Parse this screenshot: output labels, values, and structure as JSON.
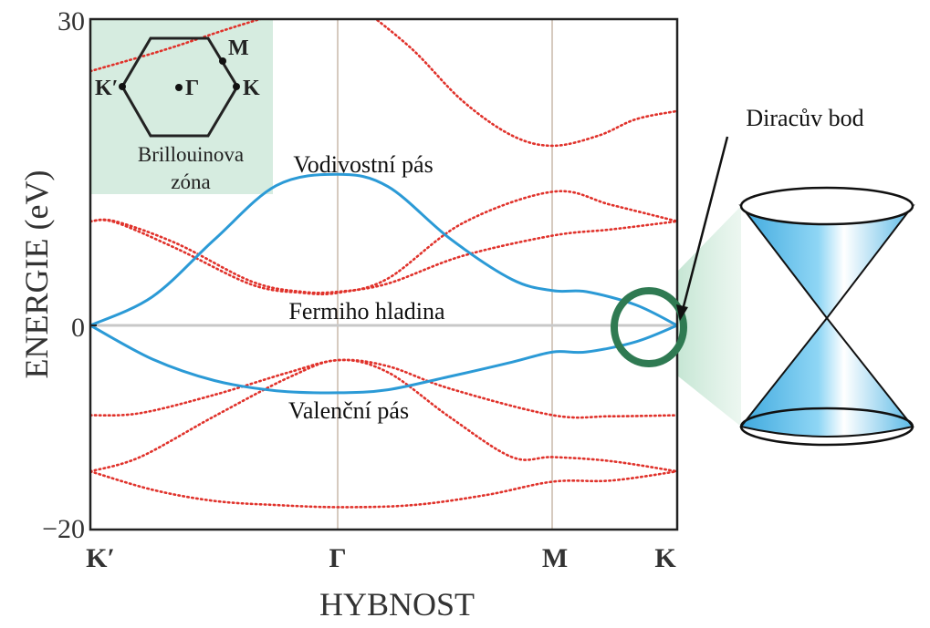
{
  "colors": {
    "conduction_valence": "#2b9ad6",
    "other_bands": "#e0322b",
    "fermi_line": "#c8c8c8",
    "zone_inset_bg": "#d6ece0",
    "dirac_ring": "#2f7a52",
    "grid": "#c8b8aa",
    "cone": "#7fcff0"
  },
  "chart_data": {
    "type": "line",
    "title": "",
    "xlabel": "HYBNOST",
    "ylabel": "ENERGIE (eV)",
    "ylim": [
      -20,
      30
    ],
    "yticks": [
      "30",
      "0",
      "−20"
    ],
    "x_points": [
      {
        "label": "K′",
        "pos": 0
      },
      {
        "label": "Γ",
        "pos": 1
      },
      {
        "label": "M",
        "pos": 1.866
      },
      {
        "label": "K",
        "pos": 2.366
      }
    ],
    "grid": "vertical lines at Γ and M",
    "series": [
      {
        "style": "solid",
        "color": "#2b9ad6",
        "x": [
          0,
          0.25,
          0.5,
          0.75,
          1.0,
          1.2,
          1.45,
          1.7,
          1.866,
          2.0,
          2.2,
          2.366
        ],
        "y": [
          0,
          2.8,
          8.4,
          13.7,
          14.8,
          13.6,
          8.5,
          4.5,
          3.4,
          3.3,
          2.0,
          0
        ]
      },
      {
        "style": "solid",
        "color": "#2b9ad6",
        "x": [
          0,
          0.25,
          0.5,
          0.75,
          1.0,
          1.2,
          1.45,
          1.7,
          1.866,
          2.0,
          2.2,
          2.366
        ],
        "y": [
          0,
          -3.3,
          -5.4,
          -6.4,
          -6.6,
          -6.3,
          -5.0,
          -3.6,
          -2.6,
          -2.6,
          -1.6,
          0
        ]
      },
      {
        "style": "dotted",
        "color": "#e0322b",
        "x": [
          0.0,
          0.1,
          0.35,
          0.65,
          0.85,
          1.0,
          1.2,
          1.5,
          1.866,
          2.1,
          2.366
        ],
        "y": [
          10.2,
          10.2,
          8.0,
          4.3,
          3.3,
          3.3,
          4.1,
          6.8,
          8.8,
          9.4,
          10.2
        ]
      },
      {
        "style": "dotted",
        "color": "#e0322b",
        "x": [
          0.0,
          0.1,
          0.35,
          0.65,
          0.85,
          1.0,
          1.2,
          1.5,
          1.866,
          2.1,
          2.366
        ],
        "y": [
          10.2,
          10.1,
          7.5,
          4.0,
          3.2,
          3.2,
          4.6,
          10.0,
          13.1,
          11.8,
          10.2
        ]
      },
      {
        "style": "dotted",
        "color": "#e0322b",
        "x": [
          0.0,
          0.2,
          0.5,
          0.8,
          1.0,
          1.2,
          1.45,
          1.866,
          2.1,
          2.366
        ],
        "y": [
          -8.8,
          -8.6,
          -6.8,
          -4.6,
          -3.4,
          -4.0,
          -6.2,
          -8.8,
          -8.9,
          -8.8
        ]
      },
      {
        "style": "dotted",
        "color": "#e0322b",
        "x": [
          0.0,
          0.2,
          0.5,
          0.8,
          1.0,
          1.2,
          1.45,
          1.7,
          1.866,
          2.1,
          2.366
        ],
        "y": [
          -14.3,
          -12.9,
          -8.9,
          -5.1,
          -3.4,
          -4.6,
          -9.0,
          -12.9,
          -12.9,
          -13.3,
          -14.3
        ]
      },
      {
        "style": "dotted",
        "color": "#e0322b",
        "x": [
          0.0,
          0.25,
          0.5,
          0.75,
          1.0,
          1.3,
          1.6,
          1.866,
          2.1,
          2.366
        ],
        "y": [
          -14.3,
          -16.1,
          -17.2,
          -17.6,
          -17.8,
          -17.6,
          -16.6,
          -15.3,
          -15.2,
          -14.3
        ]
      },
      {
        "style": "dotted",
        "color": "#e0322b",
        "x": [
          0.0,
          0.3,
          0.55,
          0.75,
          0.95
        ],
        "y": [
          24.9,
          27.0,
          29.0,
          30.5,
          32.0
        ]
      },
      {
        "style": "dotted",
        "color": "#e0322b",
        "x": [
          1.1,
          1.3,
          1.5,
          1.7,
          1.866,
          2.05,
          2.2,
          2.366
        ],
        "y": [
          31.0,
          27.0,
          22.0,
          18.6,
          17.6,
          18.6,
          20.2,
          21.0
        ]
      }
    ],
    "annotations": [
      {
        "text": "Vodivostní pás",
        "x": 1.15,
        "y": 15.6
      },
      {
        "text": "Fermiho hladina",
        "x": 1.15,
        "y": 1.1
      },
      {
        "text": "Valenční pás",
        "x": 1.15,
        "y": -8.3
      }
    ]
  },
  "fermi_label": "Fermiho hladina",
  "dirac_label": "Diracův bod",
  "brillouin": {
    "title_line1": "Brillouinova",
    "title_line2": "zóna",
    "points": [
      "M",
      "K′",
      "Γ",
      "K"
    ]
  }
}
